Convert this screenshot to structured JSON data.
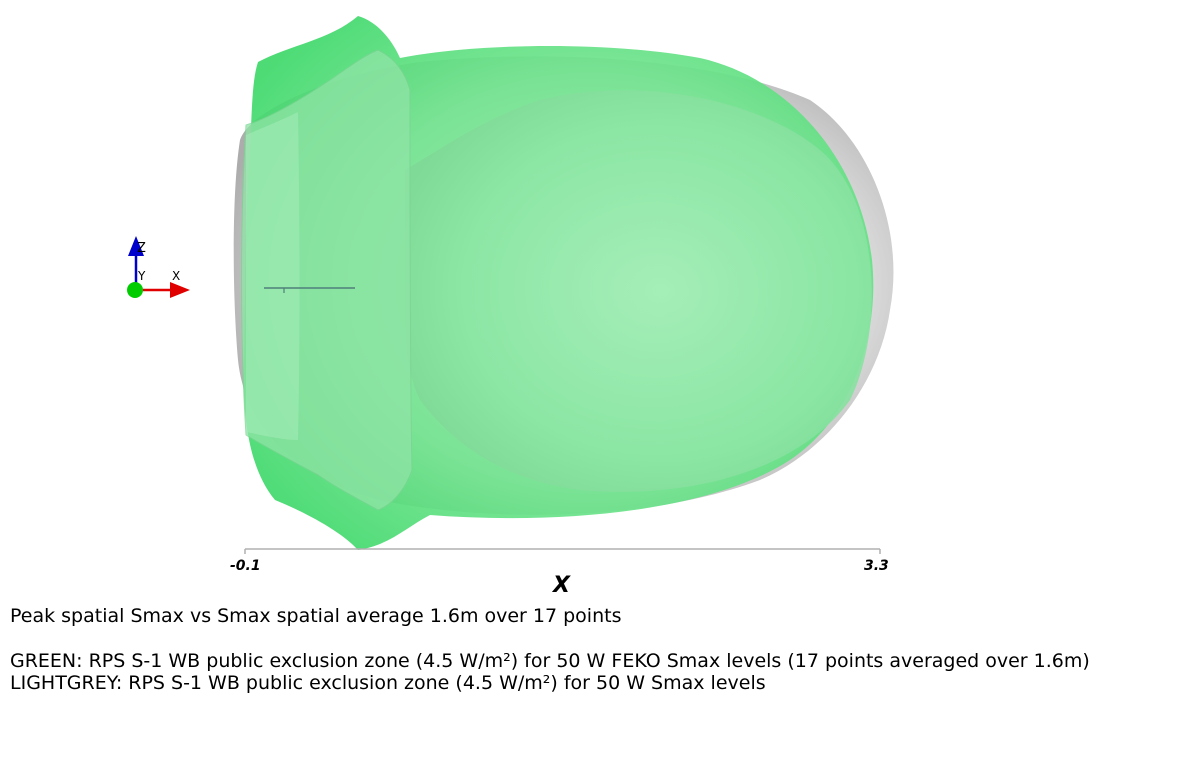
{
  "axes": {
    "x_label": "X",
    "x_min_label": "-0.1",
    "x_max_label": "3.3",
    "orientation": {
      "z": "Z",
      "y": "Y",
      "x": "X"
    }
  },
  "captions": {
    "title": "Peak spatial Smax vs Smax spatial average 1.6m over 17 points",
    "green_legend": "GREEN: RPS S-1 WB public exclusion zone (4.5 W/m²) for 50 W FEKO Smax levels (17 points averaged over 1.6m)",
    "grey_legend": "LIGHTGREY: RPS S-1 WB public exclusion zone (4.5 W/m²) for 50 W Smax levels"
  },
  "colors": {
    "green_surface": "#5fe884",
    "grey_surface": "#c8c8c8",
    "axis_x": "#e00000",
    "axis_y": "#00cc00",
    "axis_z": "#0000cc"
  }
}
